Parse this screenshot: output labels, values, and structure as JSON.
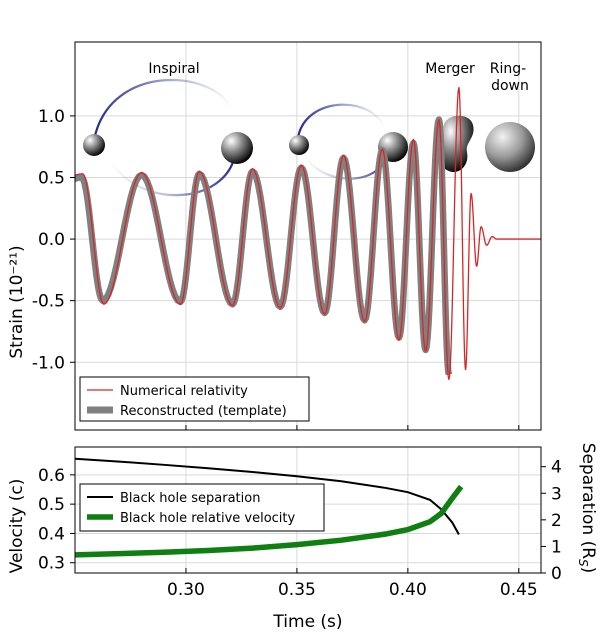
{
  "chart_data": [
    {
      "type": "line",
      "panel": "strain",
      "ylabel": "Strain (10⁻²¹)",
      "ylim": [
        -1.55,
        1.6
      ],
      "xlim": [
        0.25,
        0.46
      ],
      "y_ticks": [
        -1.0,
        -0.5,
        0.0,
        0.5,
        1.0
      ],
      "y_tick_labels": [
        "-1.0",
        "-0.5",
        "0.0",
        "0.5",
        "1.0"
      ],
      "x_ticks": [
        0.3,
        0.35,
        0.4,
        0.45
      ],
      "grid": true,
      "legend_position": "lower-left",
      "phase_labels": {
        "inspiral": "Inspiral",
        "merger": "Merger",
        "ringdown_line1": "Ring-",
        "ringdown_line2": "down"
      },
      "series": [
        {
          "name": "Numerical relativity",
          "color": "#d62728",
          "peaks": [
            {
              "t": 0.2535,
              "h": 0.53
            },
            {
              "t": 0.263,
              "h": -0.53
            },
            {
              "t": 0.28,
              "h": 0.54
            },
            {
              "t": 0.2975,
              "h": -0.53
            },
            {
              "t": 0.306,
              "h": 0.55
            },
            {
              "t": 0.321,
              "h": -0.54
            },
            {
              "t": 0.33,
              "h": 0.57
            },
            {
              "t": 0.3425,
              "h": -0.56
            },
            {
              "t": 0.352,
              "h": 0.6
            },
            {
              "t": 0.3625,
              "h": -0.61
            },
            {
              "t": 0.371,
              "h": 0.68
            },
            {
              "t": 0.3805,
              "h": -0.67
            },
            {
              "t": 0.3885,
              "h": 0.73
            },
            {
              "t": 0.396,
              "h": -0.82
            },
            {
              "t": 0.4025,
              "h": 0.81
            },
            {
              "t": 0.408,
              "h": -0.91
            },
            {
              "t": 0.414,
              "h": 0.97
            },
            {
              "t": 0.4185,
              "h": -1.14
            },
            {
              "t": 0.423,
              "h": 1.23
            },
            {
              "t": 0.426,
              "h": -1.06
            },
            {
              "t": 0.4285,
              "h": 0.37
            },
            {
              "t": 0.431,
              "h": -0.22
            },
            {
              "t": 0.433,
              "h": 0.1
            },
            {
              "t": 0.4355,
              "h": -0.05
            },
            {
              "t": 0.438,
              "h": 0.02
            },
            {
              "t": 0.44,
              "h": 0.0
            },
            {
              "t": 0.46,
              "h": 0.0
            }
          ]
        },
        {
          "name": "Reconstructed (template)",
          "color": "#808080",
          "peaks": [
            {
              "t": 0.253,
              "h": 0.5
            },
            {
              "t": 0.2625,
              "h": -0.5
            },
            {
              "t": 0.28,
              "h": 0.52
            },
            {
              "t": 0.2975,
              "h": -0.51
            },
            {
              "t": 0.306,
              "h": 0.53
            },
            {
              "t": 0.321,
              "h": -0.53
            },
            {
              "t": 0.33,
              "h": 0.55
            },
            {
              "t": 0.3425,
              "h": -0.55
            },
            {
              "t": 0.352,
              "h": 0.58
            },
            {
              "t": 0.3625,
              "h": -0.6
            },
            {
              "t": 0.371,
              "h": 0.66
            },
            {
              "t": 0.3805,
              "h": -0.66
            },
            {
              "t": 0.3885,
              "h": 0.72
            },
            {
              "t": 0.396,
              "h": -0.8
            },
            {
              "t": 0.4025,
              "h": 0.78
            },
            {
              "t": 0.408,
              "h": -0.9
            },
            {
              "t": 0.414,
              "h": 0.97
            },
            {
              "t": 0.4185,
              "h": -1.1
            }
          ]
        }
      ]
    },
    {
      "type": "line",
      "panel": "velocity",
      "xlabel": "Time (s)",
      "ylabel_left": "Velocity (c)",
      "ylabel_right": "Separation (R",
      "ylabel_right_sub": "S",
      "ylabel_right_close": ")",
      "xlim": [
        0.25,
        0.46
      ],
      "ylim_left": [
        0.265,
        0.695
      ],
      "ylim_right": [
        0,
        4.74
      ],
      "x_ticks": [
        0.3,
        0.35,
        0.4,
        0.45
      ],
      "x_tick_labels": [
        "0.30",
        "0.35",
        "0.40",
        "0.45"
      ],
      "y_left_ticks": [
        0.3,
        0.4,
        0.5,
        0.6
      ],
      "y_left_tick_labels": [
        "0.3",
        "0.4",
        "0.5",
        "0.6"
      ],
      "y_right_ticks": [
        0,
        1,
        2,
        3,
        4
      ],
      "y_right_tick_labels": [
        "0",
        "1",
        "2",
        "3",
        "4"
      ],
      "grid": true,
      "legend_position": "middle-left",
      "series": [
        {
          "name": "Black hole separation",
          "color": "#000000",
          "axis": "right",
          "x": [
            0.25,
            0.27,
            0.29,
            0.31,
            0.33,
            0.35,
            0.37,
            0.39,
            0.4,
            0.41,
            0.415,
            0.42,
            0.423
          ],
          "y": [
            4.3,
            4.19,
            4.07,
            3.94,
            3.8,
            3.64,
            3.45,
            3.2,
            3.04,
            2.75,
            2.4,
            1.9,
            1.45
          ]
        },
        {
          "name": "Black hole relative velocity",
          "color": "#0f7f12",
          "axis": "left",
          "x": [
            0.25,
            0.27,
            0.29,
            0.31,
            0.33,
            0.35,
            0.37,
            0.39,
            0.4,
            0.41,
            0.415,
            0.42,
            0.424
          ],
          "y": [
            0.327,
            0.331,
            0.336,
            0.342,
            0.35,
            0.362,
            0.377,
            0.398,
            0.413,
            0.44,
            0.468,
            0.52,
            0.56
          ]
        }
      ]
    }
  ]
}
